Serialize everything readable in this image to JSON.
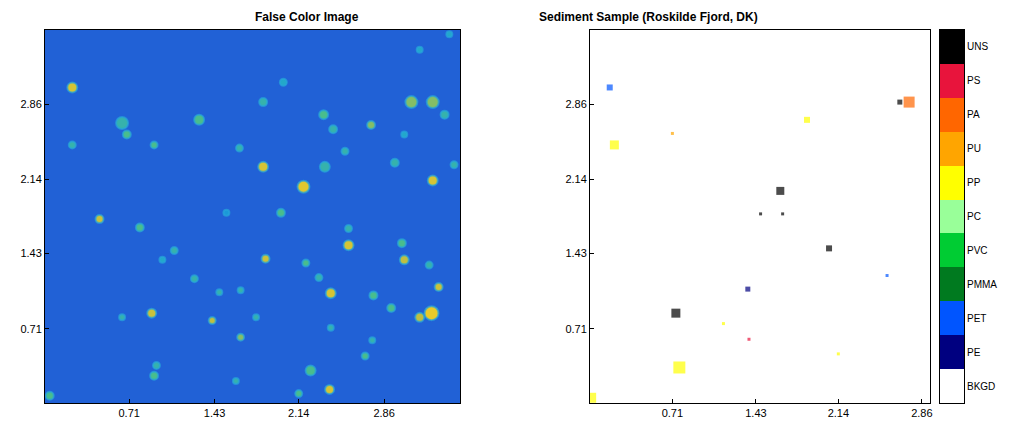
{
  "chart_data": [
    {
      "type": "scatter",
      "title": "False Color Image",
      "xlim": [
        0,
        3.5
      ],
      "ylim": [
        0,
        3.57
      ],
      "xticks": [
        0.71,
        1.43,
        2.14,
        2.86
      ],
      "yticks": [
        0.71,
        1.43,
        2.14,
        2.86
      ],
      "color": "#2161d6",
      "clim": [
        0,
        1
      ],
      "x": [
        0.23,
        0.65,
        0.69,
        1.3,
        1.84,
        2.01,
        2.35,
        2.43,
        2.75,
        3.09,
        3.27,
        3.37,
        0.23,
        0.92,
        1.64,
        1.84,
        2.18,
        2.36,
        2.53,
        2.95,
        3.27,
        3.45,
        0.46,
        0.8,
        1.53,
        1.99,
        2.56,
        2.56,
        3.01,
        3.03,
        3.24,
        1.86,
        2.2,
        1.09,
        0.99,
        1.26,
        1.47,
        1.65,
        2.41,
        2.31,
        2.77,
        2.92,
        3.32,
        3.26,
        3.16,
        0.9,
        1.41,
        1.65,
        1.78,
        2.41,
        2.76,
        2.7,
        0.65,
        0.94,
        0.92,
        1.61,
        2.24,
        2.4,
        2.14,
        0.04,
        3.41,
        3.16,
        3.03
      ],
      "y": [
        3.02,
        2.68,
        2.57,
        2.71,
        2.88,
        3.07,
        2.76,
        2.62,
        2.66,
        2.88,
        2.88,
        2.76,
        2.47,
        2.47,
        2.44,
        2.26,
        2.07,
        2.26,
        2.41,
        2.3,
        2.13,
        2.28,
        1.76,
        1.68,
        1.82,
        1.82,
        1.67,
        1.51,
        1.53,
        1.37,
        1.32,
        1.38,
        1.34,
        1.46,
        1.37,
        1.19,
        1.06,
        1.08,
        1.05,
        1.2,
        1.03,
        0.91,
        1.11,
        0.86,
        0.82,
        0.86,
        0.79,
        0.63,
        0.82,
        0.72,
        0.6,
        0.45,
        0.82,
        0.36,
        0.26,
        0.21,
        0.31,
        0.13,
        0.09,
        0.07,
        3.53,
        3.38,
        2.57
      ],
      "intensity": [
        0.9,
        0.5,
        0.6,
        0.6,
        0.5,
        0.4,
        0.6,
        0.5,
        0.7,
        0.7,
        0.7,
        0.5,
        0.5,
        0.6,
        0.5,
        0.9,
        0.95,
        0.5,
        0.5,
        0.5,
        0.9,
        0.5,
        0.85,
        0.6,
        0.3,
        0.6,
        0.5,
        0.9,
        0.6,
        0.8,
        0.5,
        0.85,
        0.6,
        0.5,
        0.4,
        0.5,
        0.5,
        0.5,
        0.9,
        0.5,
        0.6,
        0.6,
        0.85,
        1.0,
        0.8,
        0.85,
        0.8,
        0.7,
        0.5,
        0.5,
        0.5,
        0.6,
        0.5,
        0.5,
        0.6,
        0.5,
        0.6,
        0.9,
        0.6,
        0.6,
        0.4,
        0.4,
        0.4
      ],
      "size": [
        10,
        12,
        8,
        10,
        8,
        7,
        9,
        8,
        8,
        12,
        12,
        8,
        7,
        7,
        7,
        10,
        12,
        10,
        7,
        8,
        10,
        7,
        8,
        8,
        6,
        8,
        7,
        10,
        8,
        9,
        7,
        8,
        7,
        7,
        6,
        7,
        6,
        6,
        10,
        7,
        8,
        8,
        8,
        14,
        9,
        9,
        7,
        7,
        6,
        6,
        6,
        7,
        6,
        7,
        8,
        6,
        10,
        9,
        7,
        8,
        6,
        6,
        6
      ]
    },
    {
      "type": "scatter",
      "title": "Sediment Sample (Roskilde Fjord, DK)",
      "xlim": [
        0,
        2.93
      ],
      "ylim": [
        0,
        3.57
      ],
      "xticks": [
        0.71,
        1.43,
        2.14,
        2.86
      ],
      "yticks": [
        0.71,
        1.43,
        2.14,
        2.86
      ],
      "classes": [
        {
          "name": "UNS",
          "color": "#000000"
        },
        {
          "name": "PS",
          "color": "#e8143c"
        },
        {
          "name": "PA",
          "color": "#ff6600"
        },
        {
          "name": "PU",
          "color": "#ffa500"
        },
        {
          "name": "PP",
          "color": "#ffff00"
        },
        {
          "name": "PC",
          "color": "#99ff99"
        },
        {
          "name": "PVC",
          "color": "#00cc33"
        },
        {
          "name": "PMMA",
          "color": "#007a1f"
        },
        {
          "name": "PET",
          "color": "#0055ff"
        },
        {
          "name": "PE",
          "color": "#000080"
        },
        {
          "name": "BKGD",
          "color": "#ffffff"
        }
      ],
      "x": [
        0.17,
        2.67,
        2.75,
        0.21,
        0.71,
        1.87,
        1.64,
        1.47,
        1.66,
        2.06,
        1.36,
        2.56,
        0.74,
        0.77,
        0.01,
        1.15,
        1.37,
        2.14
      ],
      "y": [
        3.02,
        2.88,
        2.88,
        2.47,
        2.58,
        2.71,
        2.03,
        1.81,
        1.81,
        1.48,
        1.09,
        1.22,
        0.86,
        0.34,
        0.05,
        0.76,
        0.61,
        0.47
      ],
      "class": [
        "PET",
        "UNS",
        "PA",
        "PP",
        "PU",
        "PP",
        "UNS",
        "UNS",
        "UNS",
        "UNS",
        "PE",
        "PET",
        "UNS",
        "PP",
        "PP",
        "PP",
        "PS",
        "PP"
      ],
      "size": [
        6,
        5,
        11,
        9,
        3,
        6,
        8,
        3,
        3,
        6,
        5,
        3,
        9,
        12,
        10,
        3,
        3,
        3
      ]
    }
  ]
}
